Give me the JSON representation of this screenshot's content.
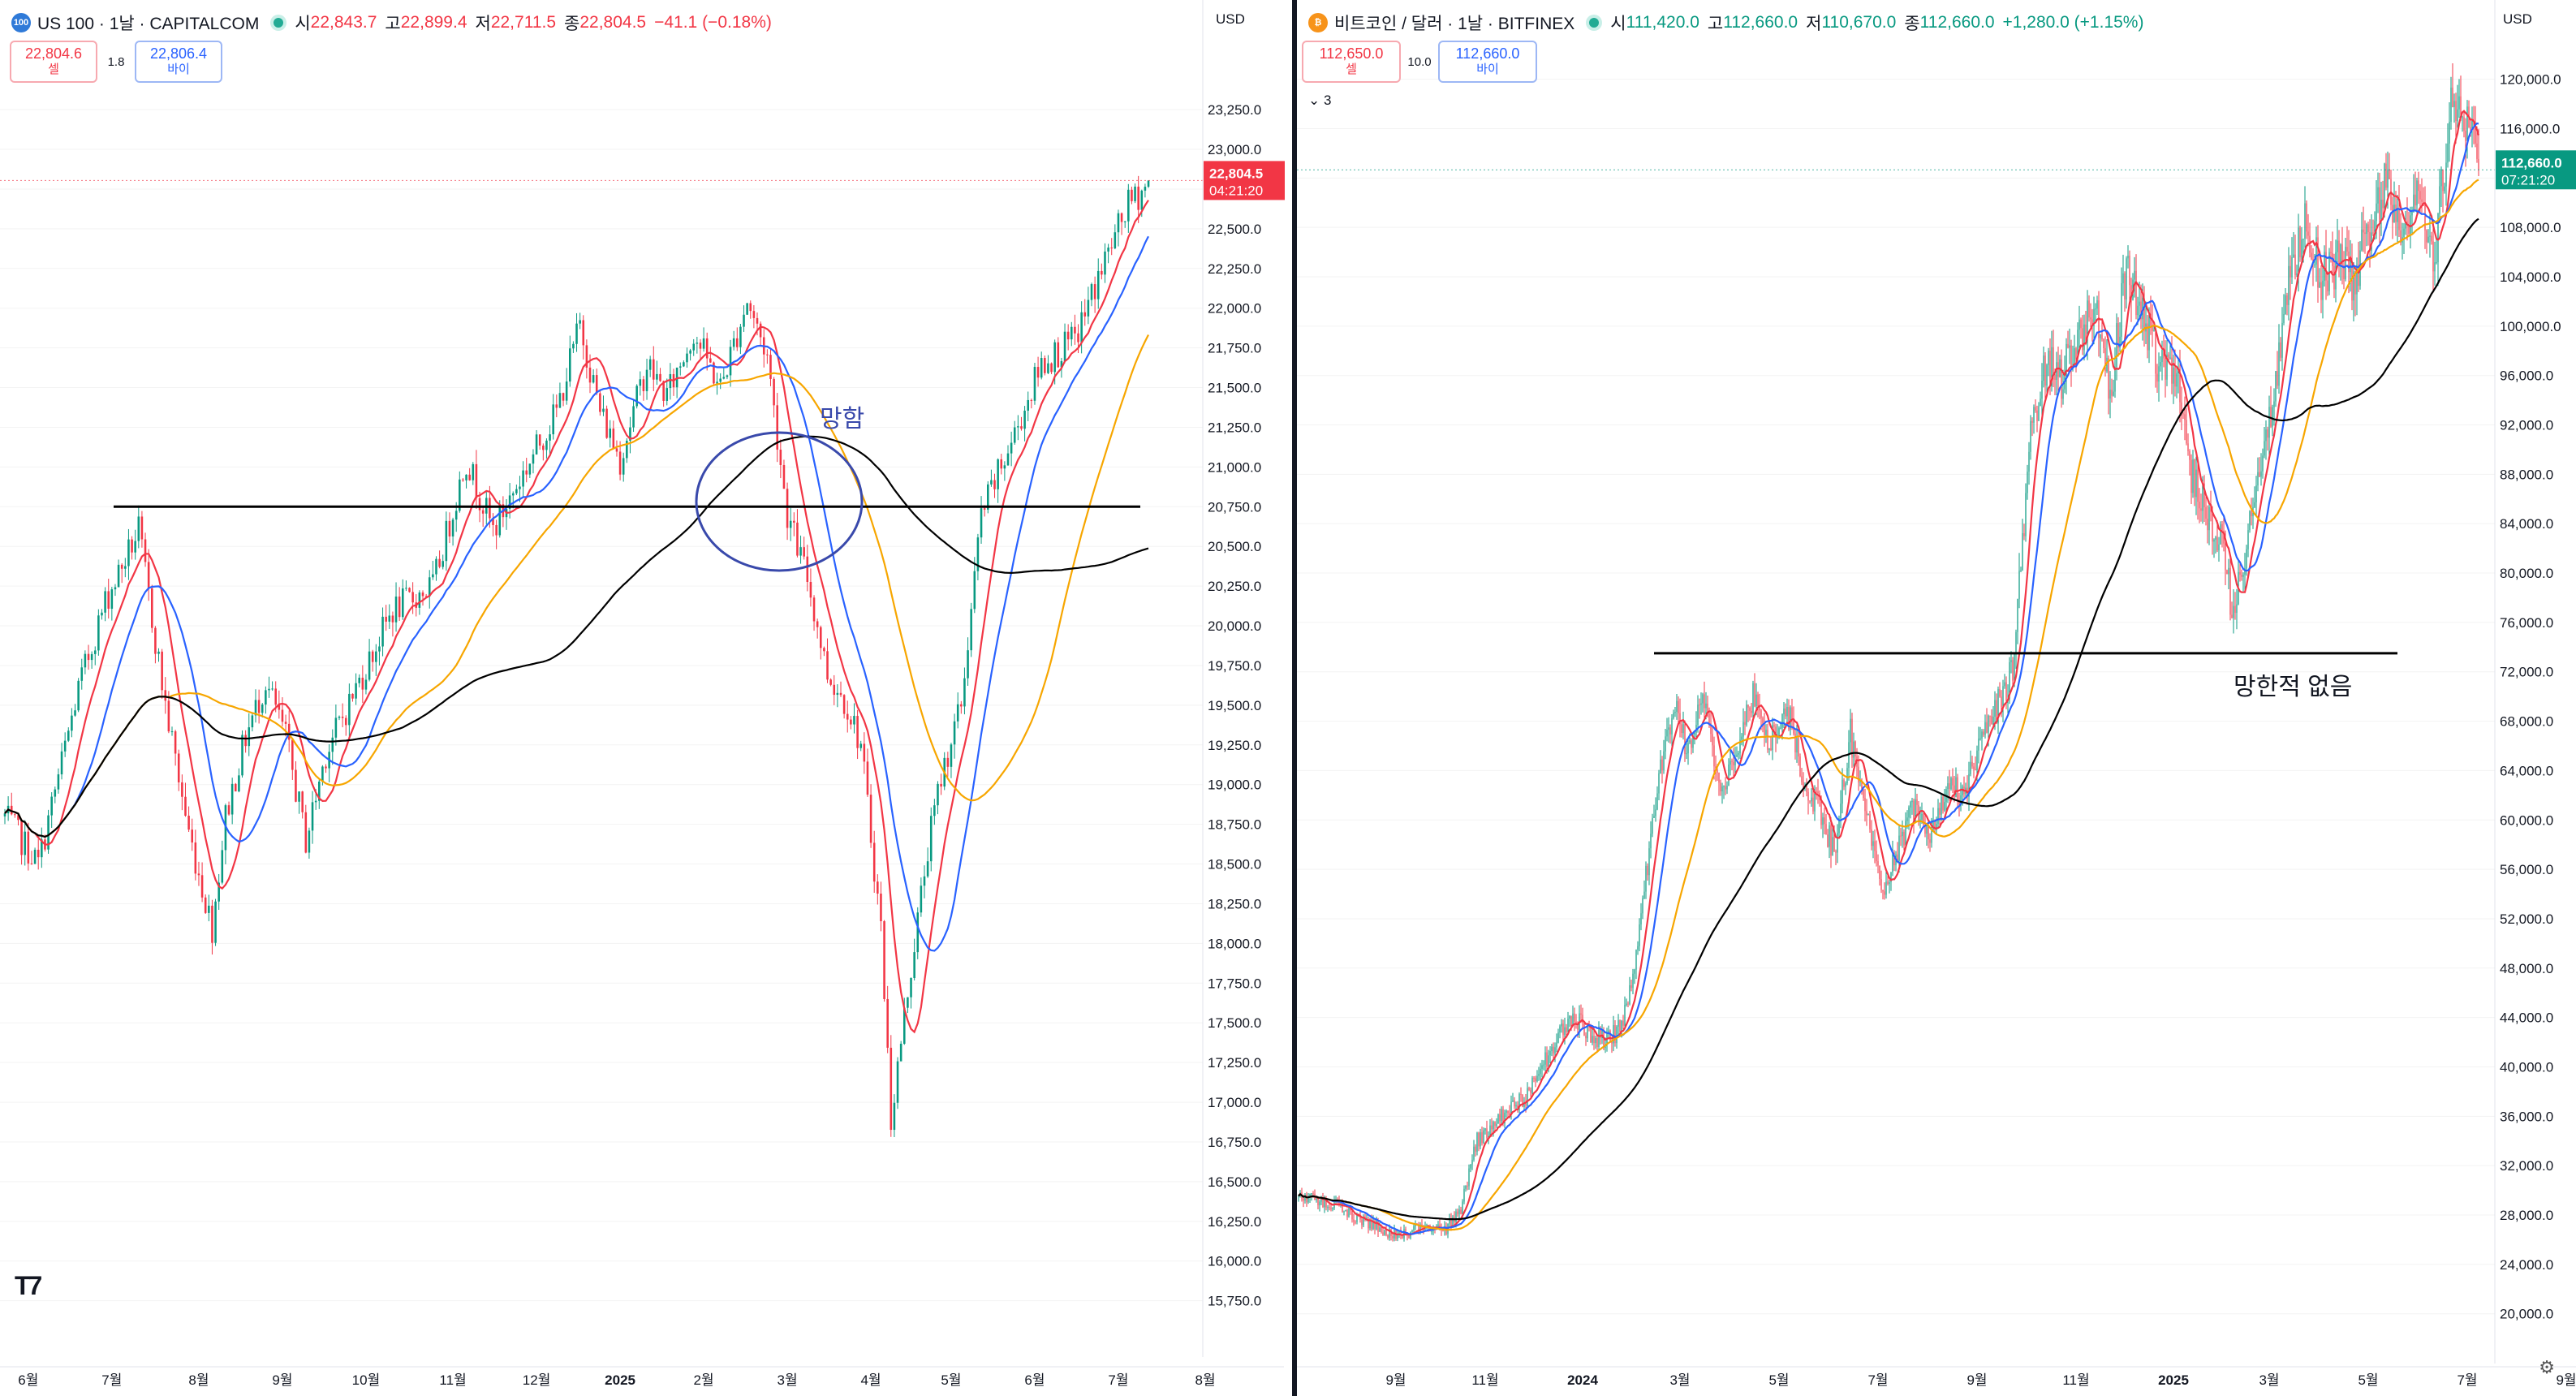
{
  "left_chart": {
    "header": {
      "icon_text": "100",
      "symbol": "US 100 · 1날 · CAPITALCOM",
      "open_label": "시",
      "open": "22,843.7",
      "high_label": "고",
      "high": "22,899.4",
      "low_label": "저",
      "low": "22,711.5",
      "close_label": "종",
      "close": "22,804.5",
      "change": "−41.1 (−0.18%)"
    },
    "trade": {
      "sell_price": "22,804.6",
      "sell_label": "셀",
      "spread": "1.8",
      "buy_price": "22,806.4",
      "buy_label": "바이"
    },
    "currency": "USD",
    "last_price": "22,804.5",
    "countdown": "04:21:20",
    "annotation_text": "망함",
    "colors": {
      "up": "#089981",
      "down": "#f23645",
      "ma_fast": "#f23645",
      "ma_mid": "#2962ff",
      "ma_slow": "#f7a600",
      "ma_long": "#000000",
      "annotation": "#3949ab"
    },
    "chart_data": {
      "type": "candlestick",
      "ylim": [
        15600,
        23450
      ],
      "y_ticks": [
        "23,250.0",
        "23,000.0",
        "22,750.0",
        "22,500.0",
        "22,250.0",
        "22,000.0",
        "21,750.0",
        "21,500.0",
        "21,250.0",
        "21,000.0",
        "20,750.0",
        "20,500.0",
        "20,250.0",
        "20,000.0",
        "19,750.0",
        "19,500.0",
        "19,250.0",
        "19,000.0",
        "18,750.0",
        "18,500.0",
        "18,250.0",
        "18,000.0",
        "17,750.0",
        "17,500.0",
        "17,250.0",
        "17,000.0",
        "16,750.0",
        "16,500.0",
        "16,250.0",
        "16,000.0",
        "15,750.0"
      ],
      "x_ticks": [
        "6월",
        "7월",
        "8월",
        "9월",
        "10월",
        "11월",
        "12월",
        "2025",
        "2월",
        "3월",
        "4월",
        "5월",
        "6월",
        "7월",
        "8월"
      ],
      "x_tick_index": [
        7,
        32,
        58,
        83,
        108,
        134,
        159,
        184,
        209,
        234,
        259,
        283,
        308,
        333,
        359
      ],
      "n_bars": 343,
      "anchors": [
        [
          0,
          18800
        ],
        [
          10,
          18500
        ],
        [
          22,
          19600
        ],
        [
          30,
          20150
        ],
        [
          40,
          20600
        ],
        [
          48,
          19500
        ],
        [
          55,
          18700
        ],
        [
          62,
          18100
        ],
        [
          66,
          18800
        ],
        [
          72,
          19300
        ],
        [
          78,
          19650
        ],
        [
          84,
          19300
        ],
        [
          90,
          18650
        ],
        [
          96,
          19200
        ],
        [
          106,
          19650
        ],
        [
          116,
          20100
        ],
        [
          128,
          20250
        ],
        [
          138,
          21050
        ],
        [
          146,
          20600
        ],
        [
          156,
          21000
        ],
        [
          165,
          21350
        ],
        [
          172,
          21900
        ],
        [
          178,
          21350
        ],
        [
          184,
          21050
        ],
        [
          192,
          21650
        ],
        [
          198,
          21450
        ],
        [
          206,
          21850
        ],
        [
          214,
          21500
        ],
        [
          222,
          22050
        ],
        [
          228,
          21700
        ],
        [
          234,
          20700
        ],
        [
          240,
          20300
        ],
        [
          246,
          19700
        ],
        [
          252,
          19500
        ],
        [
          256,
          19250
        ],
        [
          262,
          18100
        ],
        [
          265,
          16900
        ],
        [
          270,
          17700
        ],
        [
          276,
          18600
        ],
        [
          280,
          19050
        ],
        [
          286,
          19500
        ],
        [
          292,
          20700
        ],
        [
          300,
          21100
        ],
        [
          310,
          21650
        ],
        [
          320,
          21800
        ],
        [
          328,
          22250
        ],
        [
          336,
          22650
        ],
        [
          343,
          22804
        ]
      ],
      "horizontal_line": 20750
    }
  },
  "right_chart": {
    "header": {
      "icon_text": "₿",
      "symbol": "비트코인 / 달러 · 1날 · BITFINEX",
      "open_label": "시",
      "open": "111,420.0",
      "high_label": "고",
      "high": "112,660.0",
      "low_label": "저",
      "low": "110,670.0",
      "close_label": "종",
      "close": "112,660.0",
      "change": "+1,280.0 (+1.15%)"
    },
    "trade": {
      "sell_price": "112,650.0",
      "sell_label": "셀",
      "spread": "10.0",
      "buy_price": "112,660.0",
      "buy_label": "바이"
    },
    "indicator_toggle": "3",
    "currency": "USD",
    "last_price": "112,660.0",
    "countdown": "07:21:20",
    "annotation_text": "망한적 없음",
    "colors": {
      "up": "#089981",
      "down": "#f23645",
      "ma_fast": "#f23645",
      "ma_mid": "#2962ff",
      "ma_slow": "#f7a600",
      "ma_long": "#000000",
      "annotation": "#131722"
    },
    "chart_data": {
      "type": "candlestick",
      "ylim": [
        18600,
        123000
      ],
      "y_ticks": [
        "120,000.0",
        "116,000.0",
        "112,000.0",
        "108,000.0",
        "104,000.0",
        "100,000.0",
        "96,000.0",
        "92,000.0",
        "88,000.0",
        "84,000.0",
        "80,000.0",
        "76,000.0",
        "72,000.0",
        "68,000.0",
        "64,000.0",
        "60,000.0",
        "56,000.0",
        "52,000.0",
        "48,000.0",
        "44,000.0",
        "40,000.0",
        "36,000.0",
        "32,000.0",
        "28,000.0",
        "24,000.0",
        "20,000.0"
      ],
      "x_ticks": [
        "9월",
        "11월",
        "2024",
        "3월",
        "5월",
        "7월",
        "9월",
        "11월",
        "2025",
        "3월",
        "5월",
        "7월",
        "9월"
      ],
      "x_tick_index": [
        60,
        115,
        175,
        235,
        296,
        357,
        418,
        479,
        539,
        598,
        659,
        720,
        781
      ],
      "n_bars": 728,
      "anchors": [
        [
          0,
          29500
        ],
        [
          20,
          29000
        ],
        [
          40,
          27500
        ],
        [
          60,
          26400
        ],
        [
          80,
          27000
        ],
        [
          90,
          26800
        ],
        [
          100,
          28500
        ],
        [
          110,
          34000
        ],
        [
          120,
          35500
        ],
        [
          140,
          37500
        ],
        [
          160,
          42500
        ],
        [
          170,
          44000
        ],
        [
          180,
          42500
        ],
        [
          190,
          42000
        ],
        [
          200,
          43500
        ],
        [
          210,
          51000
        ],
        [
          220,
          62000
        ],
        [
          232,
          69500
        ],
        [
          240,
          65000
        ],
        [
          250,
          70000
        ],
        [
          260,
          62500
        ],
        [
          270,
          66000
        ],
        [
          280,
          70000
        ],
        [
          290,
          66000
        ],
        [
          300,
          69500
        ],
        [
          310,
          64000
        ],
        [
          320,
          61000
        ],
        [
          330,
          57500
        ],
        [
          340,
          67000
        ],
        [
          350,
          60000
        ],
        [
          360,
          54500
        ],
        [
          370,
          58000
        ],
        [
          380,
          61500
        ],
        [
          390,
          59000
        ],
        [
          400,
          63000
        ],
        [
          410,
          62000
        ],
        [
          420,
          66000
        ],
        [
          430,
          69000
        ],
        [
          440,
          72000
        ],
        [
          450,
          90000
        ],
        [
          460,
          97000
        ],
        [
          470,
          96000
        ],
        [
          480,
          99000
        ],
        [
          490,
          102000
        ],
        [
          500,
          94000
        ],
        [
          510,
          105000
        ],
        [
          520,
          101000
        ],
        [
          530,
          97000
        ],
        [
          540,
          97000
        ],
        [
          550,
          88000
        ],
        [
          560,
          85000
        ],
        [
          570,
          82000
        ],
        [
          575,
          77000
        ],
        [
          580,
          80000
        ],
        [
          590,
          86000
        ],
        [
          600,
          94000
        ],
        [
          610,
          103000
        ],
        [
          620,
          108000
        ],
        [
          630,
          104000
        ],
        [
          640,
          105000
        ],
        [
          650,
          104000
        ],
        [
          660,
          108000
        ],
        [
          670,
          112000
        ],
        [
          680,
          108000
        ],
        [
          690,
          110000
        ],
        [
          700,
          106000
        ],
        [
          710,
          118000
        ],
        [
          720,
          117000
        ],
        [
          728,
          112660
        ]
      ],
      "horizontal_line": 73500
    }
  }
}
